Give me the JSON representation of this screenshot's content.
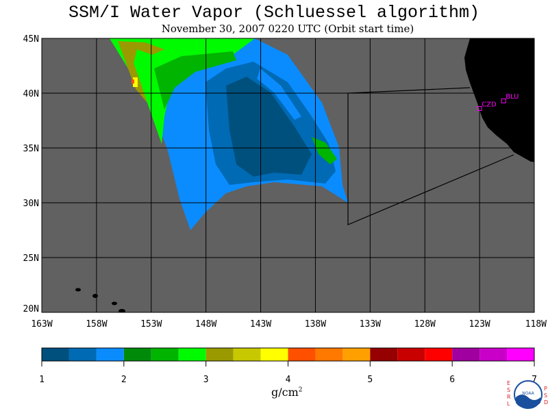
{
  "title": "SSM/I Water Vapor (Schluessel algorithm)",
  "subtitle": "November 30, 2007  0220 UTC  (Orbit start time)",
  "map": {
    "lon_range": [
      -163,
      -118
    ],
    "lat_range": [
      20,
      45
    ],
    "lon_labels": [
      "163W",
      "158W",
      "153W",
      "148W",
      "143W",
      "138W",
      "133W",
      "128W",
      "123W",
      "118W"
    ],
    "lat_labels": [
      "45N",
      "40N",
      "35N",
      "30N",
      "25N",
      "20N"
    ],
    "stations": [
      {
        "name": "CZD",
        "lon": -123.0,
        "lat": 38.6
      },
      {
        "name": "BLU",
        "lon": -120.8,
        "lat": 39.3
      }
    ],
    "colors": {
      "ocean": "#616161",
      "land": "#000000",
      "grid": "#000000",
      "station": "#ff00ff"
    }
  },
  "colorbar": {
    "colors": [
      "#00507e",
      "#006ab4",
      "#0a8cff",
      "#008a0a",
      "#00b400",
      "#00fa00",
      "#9a9a00",
      "#c8c800",
      "#ffff00",
      "#ff5000",
      "#ff7800",
      "#ffa000",
      "#960000",
      "#c80000",
      "#ff0000",
      "#a000a0",
      "#c800c8",
      "#ff00ff"
    ],
    "tick_labels": [
      "1",
      "2",
      "3",
      "4",
      "5",
      "6",
      "7"
    ],
    "units_base": "g/cm",
    "units_exp": "2"
  },
  "logo": {
    "left_letters": [
      "E",
      "S",
      "R",
      "L"
    ],
    "right_letters": [
      "P",
      "S",
      "D"
    ],
    "badge": "NOAA"
  }
}
